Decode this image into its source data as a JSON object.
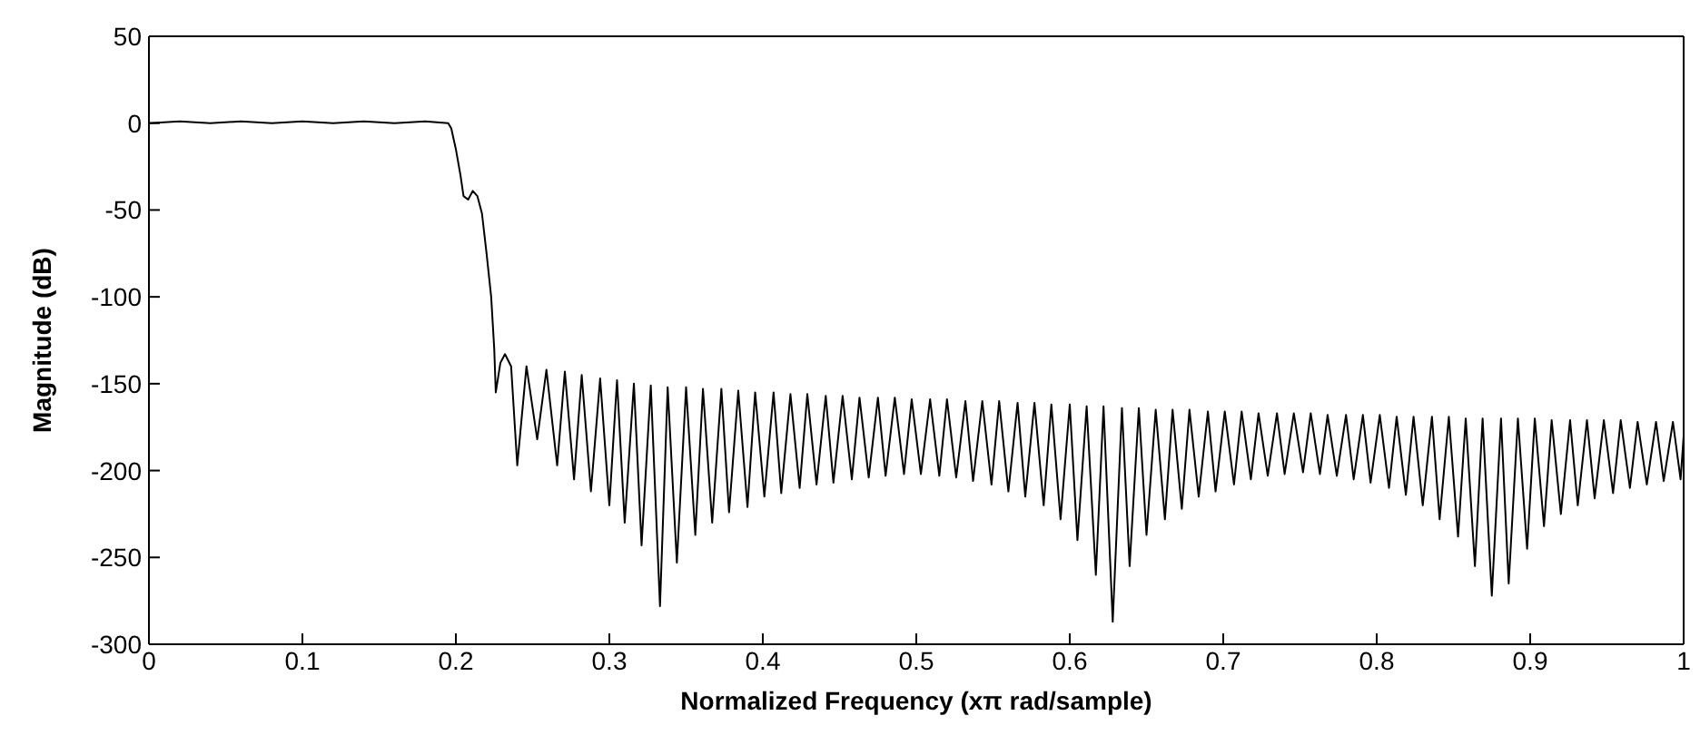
{
  "chart_data": {
    "type": "line",
    "xlabel": "Normalized Frequency (xπ rad/sample)",
    "ylabel": "Magnitude (dB)",
    "xlim": [
      0,
      1
    ],
    "xticks": [
      0,
      0.1,
      0.2,
      0.3,
      0.4,
      0.5,
      0.6,
      0.7,
      0.8,
      0.9,
      1
    ],
    "ylim": [
      -300,
      50
    ],
    "yticks": [
      -300,
      -250,
      -200,
      -150,
      -100,
      -50,
      0,
      50
    ],
    "marker": "none",
    "line_style": "solid",
    "series": [
      {
        "color": "#000000",
        "x": [
          0,
          0.02,
          0.04,
          0.06,
          0.08,
          0.1,
          0.12,
          0.14,
          0.16,
          0.18,
          0.195,
          0.197,
          0.2,
          0.203,
          0.205,
          0.208,
          0.211,
          0.214,
          0.217,
          0.22,
          0.223,
          0.225,
          0.226,
          0.229,
          0.232,
          0.236,
          0.24,
          0.246,
          0.253,
          0.259,
          0.266,
          0.271,
          0.277,
          0.282,
          0.288,
          0.294,
          0.3,
          0.305,
          0.31,
          0.316,
          0.321,
          0.327,
          0.333,
          0.338,
          0.344,
          0.35,
          0.356,
          0.361,
          0.367,
          0.373,
          0.378,
          0.384,
          0.39,
          0.395,
          0.401,
          0.407,
          0.412,
          0.418,
          0.424,
          0.429,
          0.435,
          0.441,
          0.446,
          0.452,
          0.458,
          0.463,
          0.469,
          0.475,
          0.48,
          0.486,
          0.492,
          0.497,
          0.503,
          0.509,
          0.515,
          0.52,
          0.526,
          0.532,
          0.537,
          0.543,
          0.549,
          0.554,
          0.56,
          0.566,
          0.571,
          0.577,
          0.583,
          0.588,
          0.594,
          0.6,
          0.605,
          0.611,
          0.617,
          0.622,
          0.628,
          0.634,
          0.639,
          0.645,
          0.65,
          0.656,
          0.662,
          0.667,
          0.673,
          0.678,
          0.684,
          0.69,
          0.695,
          0.701,
          0.707,
          0.712,
          0.718,
          0.723,
          0.729,
          0.735,
          0.74,
          0.746,
          0.752,
          0.757,
          0.763,
          0.768,
          0.774,
          0.78,
          0.785,
          0.791,
          0.796,
          0.802,
          0.808,
          0.813,
          0.819,
          0.824,
          0.83,
          0.836,
          0.841,
          0.847,
          0.853,
          0.858,
          0.864,
          0.869,
          0.875,
          0.881,
          0.886,
          0.892,
          0.898,
          0.903,
          0.909,
          0.914,
          0.92,
          0.926,
          0.931,
          0.937,
          0.942,
          0.948,
          0.954,
          0.959,
          0.965,
          0.97,
          0.976,
          0.982,
          0.987,
          0.993,
          0.998,
          1
        ],
        "values": [
          0,
          1,
          0,
          1,
          0,
          1,
          0,
          1,
          0,
          1,
          0,
          -3,
          -15,
          -30,
          -42,
          -44,
          -39,
          -42,
          -52,
          -75,
          -100,
          -130,
          -155,
          -138,
          -133,
          -140,
          -197,
          -140,
          -182,
          -142,
          -197,
          -143,
          -205,
          -145,
          -212,
          -147,
          -220,
          -148,
          -230,
          -150,
          -243,
          -151,
          -278,
          -152,
          -253,
          -152,
          -237,
          -153,
          -230,
          -153,
          -224,
          -154,
          -221,
          -155,
          -215,
          -155,
          -213,
          -156,
          -210,
          -156,
          -208,
          -157,
          -207,
          -157,
          -205,
          -158,
          -204,
          -158,
          -203,
          -158,
          -202,
          -159,
          -202,
          -159,
          -203,
          -159,
          -204,
          -160,
          -206,
          -160,
          -208,
          -160,
          -212,
          -161,
          -215,
          -161,
          -220,
          -162,
          -228,
          -162,
          -240,
          -163,
          -260,
          -163,
          -287,
          -164,
          -255,
          -164,
          -237,
          -165,
          -228,
          -165,
          -222,
          -165,
          -215,
          -166,
          -212,
          -166,
          -208,
          -166,
          -205,
          -167,
          -203,
          -167,
          -202,
          -167,
          -201,
          -167,
          -202,
          -168,
          -203,
          -168,
          -205,
          -168,
          -207,
          -168,
          -210,
          -169,
          -214,
          -169,
          -220,
          -169,
          -228,
          -169,
          -238,
          -170,
          -255,
          -170,
          -272,
          -170,
          -265,
          -170,
          -245,
          -170,
          -232,
          -171,
          -225,
          -171,
          -220,
          -171,
          -216,
          -171,
          -213,
          -171,
          -210,
          -172,
          -208,
          -172,
          -206,
          -172,
          -205,
          -180
        ]
      }
    ]
  }
}
